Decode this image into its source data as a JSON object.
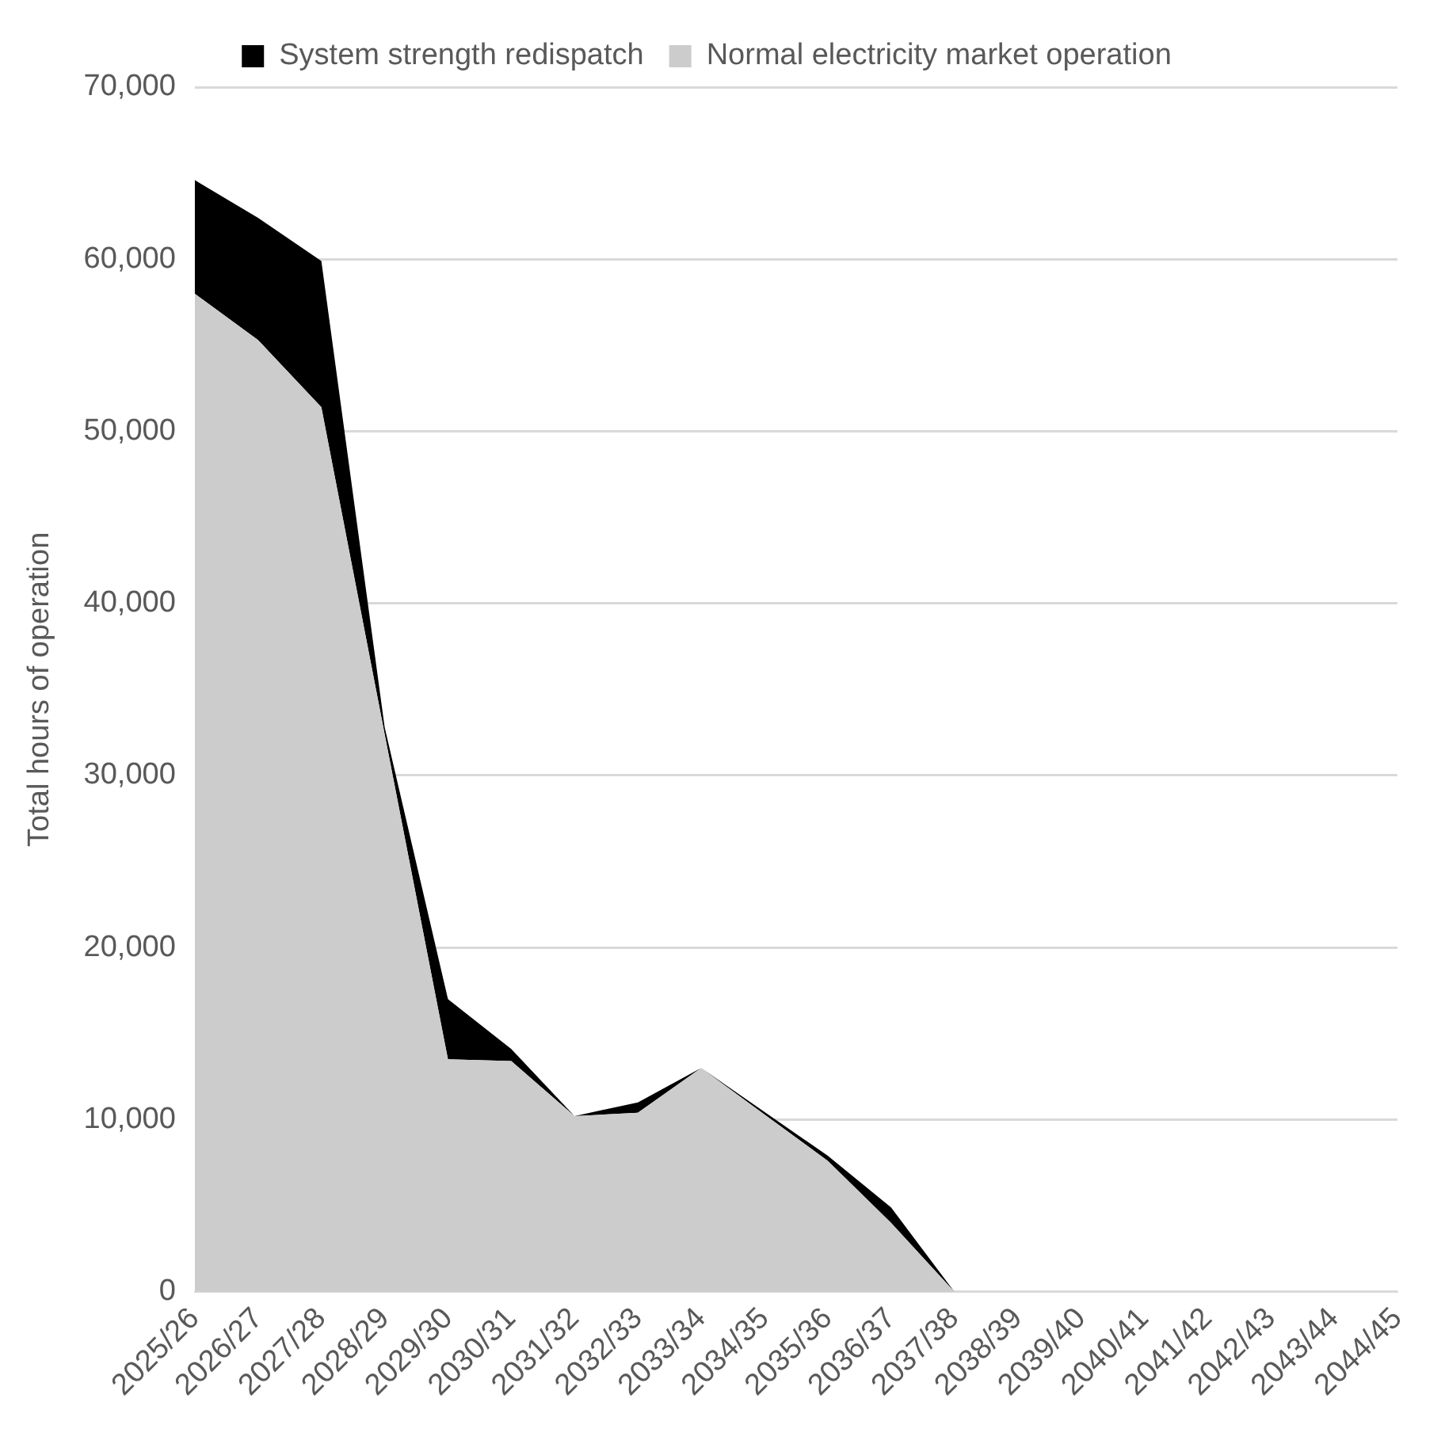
{
  "chart_data": {
    "type": "area",
    "ylabel": "Total hours of operation",
    "categories": [
      "2025/26",
      "2026/27",
      "2027/28",
      "2028/29",
      "2029/30",
      "2030/31",
      "2031/32",
      "2032/33",
      "2033/34",
      "2034/35",
      "2035/36",
      "2036/37",
      "2037/38",
      "2038/39",
      "2039/40",
      "2040/41",
      "2041/42",
      "2042/43",
      "2043/44",
      "2044/45"
    ],
    "stacked": true,
    "series": [
      {
        "name": "Normal electricity market operation",
        "color": "#cccccc",
        "values": [
          58000,
          55300,
          51400,
          32400,
          13500,
          13400,
          10200,
          10400,
          13000,
          10300,
          7600,
          4000,
          0,
          0,
          0,
          0,
          0,
          0,
          0,
          0
        ]
      },
      {
        "name": "System strength redispatch",
        "color": "#000000",
        "values": [
          6600,
          7100,
          8500,
          400,
          3500,
          700,
          0,
          600,
          0,
          null,
          300,
          900,
          0,
          0,
          0,
          0,
          0,
          0,
          0,
          0
        ]
      }
    ],
    "ylim": [
      0,
      70000
    ],
    "yticks": [
      {
        "value": 0,
        "label": "0"
      },
      {
        "value": 10000,
        "label": "10,000"
      },
      {
        "value": 20000,
        "label": "20,000"
      },
      {
        "value": 30000,
        "label": "30,000"
      },
      {
        "value": 40000,
        "label": "40,000"
      },
      {
        "value": 50000,
        "label": "50,000"
      },
      {
        "value": 60000,
        "label": "60,000"
      },
      {
        "value": 70000,
        "label": "70,000"
      }
    ],
    "grid": "y",
    "legend": "top"
  }
}
